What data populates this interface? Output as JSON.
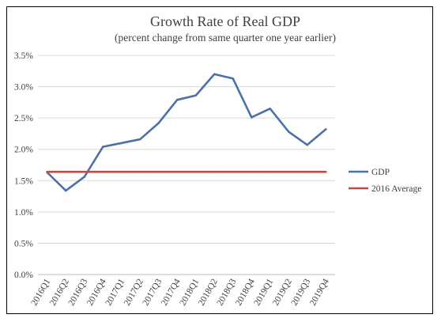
{
  "chart_data": {
    "type": "line",
    "title": "Growth Rate of Real GDP",
    "subtitle": "(percent change from same quarter one year earlier)",
    "xlabel": "",
    "ylabel": "",
    "categories": [
      "2016Q1",
      "2016Q2",
      "2016Q3",
      "2016Q4",
      "2017Q1",
      "2017Q2",
      "2017Q3",
      "2017Q4",
      "2018Q1",
      "2018Q2",
      "2018Q3",
      "2018Q4",
      "2019Q1",
      "2019Q2",
      "2019Q3",
      "2019Q4"
    ],
    "ylim": [
      0,
      3.5
    ],
    "yticks": [
      0,
      0.5,
      1.0,
      1.5,
      2.0,
      2.5,
      3.0,
      3.5
    ],
    "ytick_labels": [
      "0.0%",
      "0.5%",
      "1.0%",
      "1.5%",
      "2.0%",
      "2.5%",
      "3.0%",
      "3.5%"
    ],
    "grid": true,
    "legend_position": "right",
    "series": [
      {
        "name": "GDP",
        "color": "#4a72a8",
        "values": [
          1.63,
          1.34,
          1.56,
          2.04,
          2.1,
          2.16,
          2.42,
          2.79,
          2.86,
          3.2,
          3.13,
          2.51,
          2.65,
          2.28,
          2.07,
          2.32
        ]
      },
      {
        "name": "2016 Average",
        "color": "#be4b48",
        "values": [
          1.64,
          1.64,
          1.64,
          1.64,
          1.64,
          1.64,
          1.64,
          1.64,
          1.64,
          1.64,
          1.64,
          1.64,
          1.64,
          1.64,
          1.64,
          1.64
        ]
      }
    ]
  }
}
